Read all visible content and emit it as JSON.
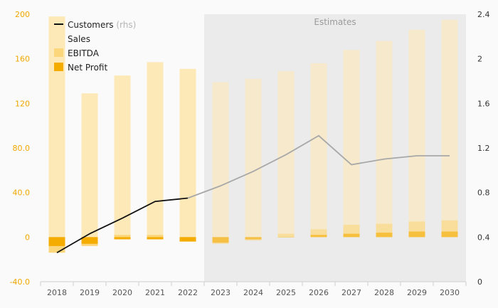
{
  "chart_data": {
    "type": "bar",
    "categories": [
      "2018",
      "2019",
      "2020",
      "2021",
      "2022",
      "2023",
      "2024",
      "2025",
      "2026",
      "2027",
      "2028",
      "2029",
      "2030"
    ],
    "estimates_start": "2023",
    "estimates_label": "Estimates",
    "series": [
      {
        "name": "Sales",
        "kind": "bar",
        "color": "#fde8b8",
        "values": [
          198,
          129,
          145,
          157,
          151,
          139,
          142,
          149,
          156,
          168,
          176,
          186,
          195
        ]
      },
      {
        "name": "EBITDA",
        "kind": "bar",
        "color": "#fcd67a",
        "values": [
          -14,
          -8,
          2,
          2,
          -3,
          -6,
          -3,
          3,
          7,
          11,
          12,
          14,
          15
        ]
      },
      {
        "name": "Net Profit",
        "kind": "bar",
        "color": "#f5ac00",
        "values": [
          -8,
          -6,
          -2,
          -2,
          -4,
          -5,
          -2,
          0,
          2,
          3,
          4,
          5,
          5
        ]
      },
      {
        "name": "Customers",
        "kind": "line",
        "axis": "rhs",
        "color": "#111111",
        "values": [
          0.26,
          0.43,
          0.57,
          0.72,
          0.75,
          0.86,
          0.99,
          1.14,
          1.31,
          1.05,
          1.1,
          1.13,
          1.13
        ]
      }
    ],
    "legend": [
      {
        "label": "Customers",
        "note": "(rhs)",
        "swatch": "line",
        "color": "#111111"
      },
      {
        "label": "Sales",
        "swatch": "box",
        "color": "#fde8b8"
      },
      {
        "label": "EBITDA",
        "swatch": "box",
        "color": "#fcd67a"
      },
      {
        "label": "Net Profit",
        "swatch": "box",
        "color": "#f5ac00"
      }
    ],
    "y_left": {
      "ticks": [
        "200",
        "160",
        "120",
        "80.0",
        "40.0",
        "0",
        "-40.0"
      ],
      "min": -40,
      "max": 200,
      "color": "#f0a800"
    },
    "y_right": {
      "ticks": [
        "2.4",
        "2",
        "1.6",
        "1.2",
        "0.8",
        "0.4",
        "0"
      ],
      "min": 0,
      "max": 2.4
    },
    "legend_position": "top-left",
    "estimate_line_color": "#a8a8a8",
    "estimate_region_color": "#ebebeb",
    "grid": false
  }
}
